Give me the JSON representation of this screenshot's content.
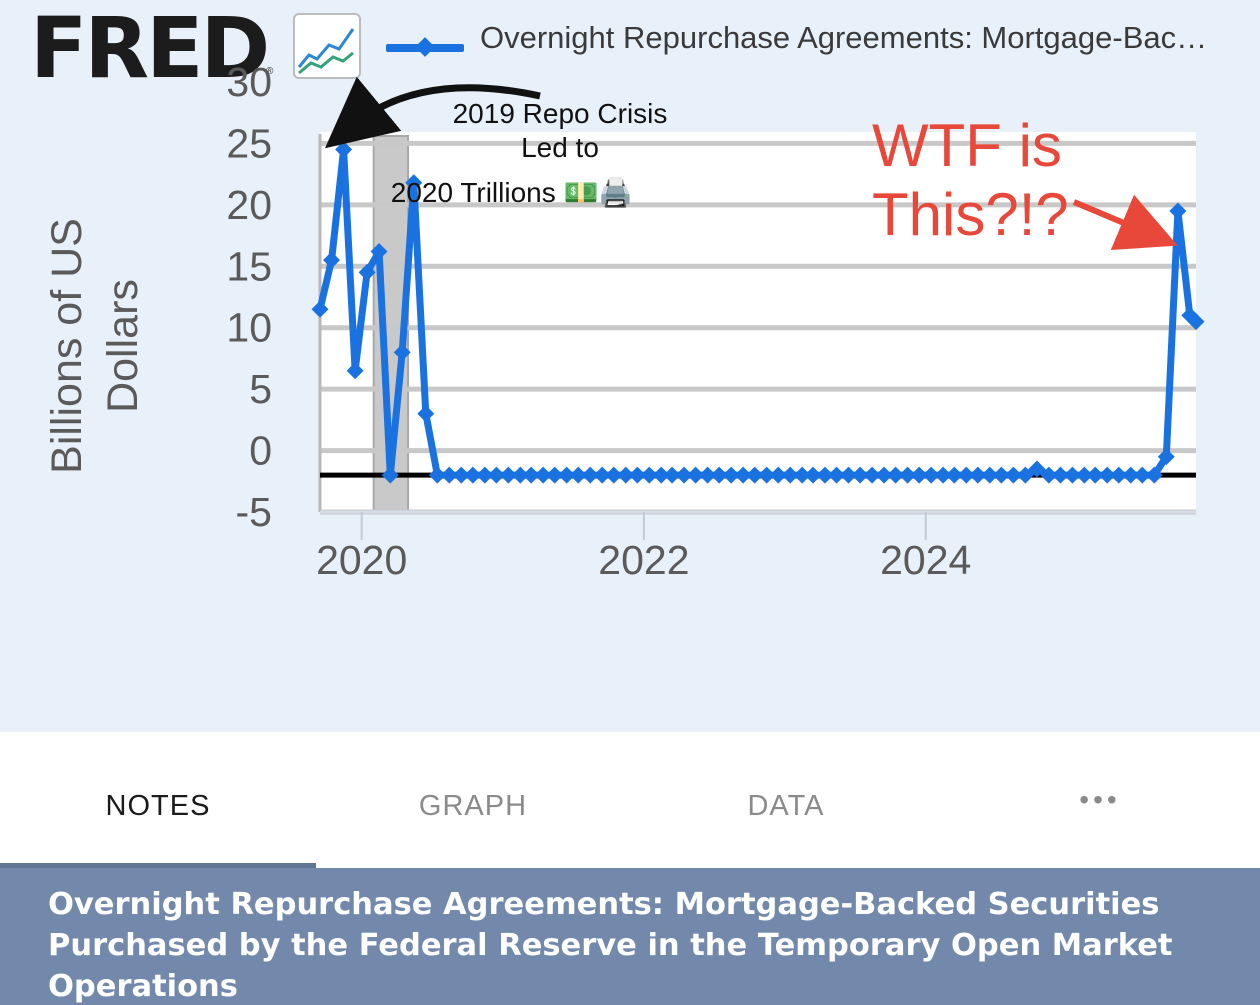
{
  "header": {
    "logo_text": "FRED",
    "logo_registered": "®",
    "logo_icon": "line-chart-icon",
    "legend_label": "Overnight Repurchase Agreements: Mortgage-Bac…"
  },
  "colors": {
    "series": "#1a72e0",
    "annotation_red": "#e8483a",
    "chart_background": "#e8f0fa",
    "footer_background": "#7389ac"
  },
  "chart_data": {
    "type": "line",
    "ylabel": "Billions of US Dollars",
    "ylim": [
      -5,
      30
    ],
    "yticks": [
      30,
      25,
      20,
      15,
      10,
      5,
      0,
      -5
    ],
    "xlim": [
      "2019-09-15",
      "2025-12-01"
    ],
    "xticks": [
      "2020",
      "2022",
      "2024"
    ],
    "grid": true,
    "recession_shading": [
      "2020-02-01",
      "2020-04-30"
    ],
    "baseline_y": -2,
    "series": [
      {
        "name": "Overnight Repurchase Agreements: Mortgage-Backed Securities Purchased by the Federal Reserve in the Temporary Open Market Operations",
        "points": [
          [
            "2019-09-15",
            11.5
          ],
          [
            "2019-10-15",
            15.5
          ],
          [
            "2019-11-15",
            24.5
          ],
          [
            "2019-12-15",
            6.5
          ],
          [
            "2020-01-15",
            14.5
          ],
          [
            "2020-02-15",
            16.2
          ],
          [
            "2020-03-15",
            -2.0
          ],
          [
            "2020-04-15",
            8.0
          ],
          [
            "2020-05-15",
            21.8
          ],
          [
            "2020-06-15",
            3.0
          ],
          [
            "2020-07-15",
            -2.0
          ],
          [
            "2020-08-15",
            -2.0
          ],
          [
            "2020-09-15",
            -2.0
          ],
          [
            "2020-10-15",
            -2.0
          ],
          [
            "2020-11-15",
            -2.0
          ],
          [
            "2020-12-15",
            -2.0
          ],
          [
            "2021-01-15",
            -2.0
          ],
          [
            "2021-02-15",
            -2.0
          ],
          [
            "2021-03-15",
            -2.0
          ],
          [
            "2021-04-15",
            -2.0
          ],
          [
            "2021-05-15",
            -2.0
          ],
          [
            "2021-06-15",
            -2.0
          ],
          [
            "2021-07-15",
            -2.0
          ],
          [
            "2021-08-15",
            -2.0
          ],
          [
            "2021-09-15",
            -2.0
          ],
          [
            "2021-10-15",
            -2.0
          ],
          [
            "2021-11-15",
            -2.0
          ],
          [
            "2021-12-15",
            -2.0
          ],
          [
            "2022-01-15",
            -2.0
          ],
          [
            "2022-02-15",
            -2.0
          ],
          [
            "2022-03-15",
            -2.0
          ],
          [
            "2022-04-15",
            -2.0
          ],
          [
            "2022-05-15",
            -2.0
          ],
          [
            "2022-06-15",
            -2.0
          ],
          [
            "2022-07-15",
            -2.0
          ],
          [
            "2022-08-15",
            -2.0
          ],
          [
            "2022-09-15",
            -2.0
          ],
          [
            "2022-10-15",
            -2.0
          ],
          [
            "2022-11-15",
            -2.0
          ],
          [
            "2022-12-15",
            -2.0
          ],
          [
            "2023-01-15",
            -2.0
          ],
          [
            "2023-02-15",
            -2.0
          ],
          [
            "2023-03-15",
            -2.0
          ],
          [
            "2023-04-15",
            -2.0
          ],
          [
            "2023-05-15",
            -2.0
          ],
          [
            "2023-06-15",
            -2.0
          ],
          [
            "2023-07-15",
            -2.0
          ],
          [
            "2023-08-15",
            -2.0
          ],
          [
            "2023-09-15",
            -2.0
          ],
          [
            "2023-10-15",
            -2.0
          ],
          [
            "2023-11-15",
            -2.0
          ],
          [
            "2023-12-15",
            -2.0
          ],
          [
            "2024-01-15",
            -2.0
          ],
          [
            "2024-02-15",
            -2.0
          ],
          [
            "2024-03-15",
            -2.0
          ],
          [
            "2024-04-15",
            -2.0
          ],
          [
            "2024-05-15",
            -2.0
          ],
          [
            "2024-06-15",
            -2.0
          ],
          [
            "2024-07-15",
            -2.0
          ],
          [
            "2024-08-15",
            -2.0
          ],
          [
            "2024-09-15",
            -2.0
          ],
          [
            "2024-10-15",
            -1.5
          ],
          [
            "2024-11-15",
            -2.0
          ],
          [
            "2024-12-15",
            -2.0
          ],
          [
            "2025-01-15",
            -2.0
          ],
          [
            "2025-02-15",
            -2.0
          ],
          [
            "2025-03-15",
            -2.0
          ],
          [
            "2025-04-15",
            -2.0
          ],
          [
            "2025-05-15",
            -2.0
          ],
          [
            "2025-06-15",
            -2.0
          ],
          [
            "2025-07-15",
            -2.0
          ],
          [
            "2025-08-15",
            -2.0
          ],
          [
            "2025-09-15",
            -0.5
          ],
          [
            "2025-10-15",
            19.5
          ],
          [
            "2025-11-15",
            11.0
          ],
          [
            "2025-12-01",
            10.5
          ]
        ]
      }
    ],
    "annotations": [
      {
        "name": "repo-crisis-note",
        "lines": [
          "2019 Repo Crisis",
          "Led to",
          "2020 Trillions 💵🖨️"
        ],
        "color": "#111111"
      },
      {
        "name": "wtf-note",
        "lines": [
          "WTF is",
          "This?!?"
        ],
        "color": "#e8483a"
      }
    ]
  },
  "tabs": {
    "notes": "NOTES",
    "graph": "GRAPH",
    "data": "DATA",
    "more": "•••",
    "active": "notes"
  },
  "footer": {
    "title": "Overnight Repurchase Agreements: Mortgage-Backed Securities Purchased by the Federal Reserve in the Temporary Open Market Operations"
  }
}
